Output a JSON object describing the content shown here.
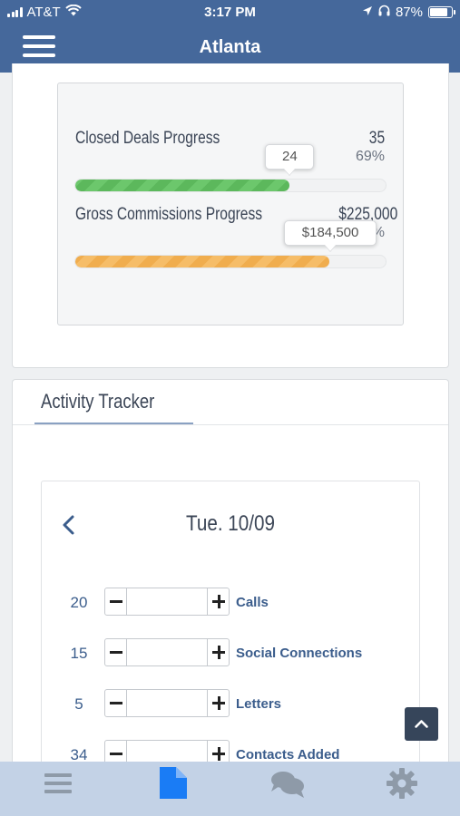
{
  "status_bar": {
    "carrier": "AT&T",
    "time": "3:17 PM",
    "battery": "87%",
    "battery_level": 0.87,
    "icons": [
      "signal-icon",
      "wifi-icon",
      "location-arrow-icon",
      "headphones-icon",
      "battery-icon"
    ]
  },
  "header": {
    "title": "Atlanta",
    "menu_icon": "hamburger-menu-icon"
  },
  "progress": {
    "closed_deals": {
      "label": "Closed Deals Progress",
      "goal": "35",
      "percent": "69%",
      "current": "24",
      "fraction": 0.69,
      "color": "#5cb85c"
    },
    "gross_commissions": {
      "label": "Gross Commissions Progress",
      "goal": "$225,000",
      "percent": "%",
      "current": "$184,500",
      "fraction": 0.82,
      "color": "#f0ad4e"
    }
  },
  "activity": {
    "title": "Activity Tracker",
    "date": "Tue. 10/09",
    "prev_icon": "chevron-left-icon",
    "rows": [
      {
        "count": "20",
        "label": "Calls",
        "value": ""
      },
      {
        "count": "15",
        "label": "Social Connections",
        "value": ""
      },
      {
        "count": "5",
        "label": "Letters",
        "value": ""
      },
      {
        "count": "34",
        "label": "Contacts Added",
        "value": ""
      }
    ]
  },
  "scroll_top_icon": "chevron-up-icon",
  "tab_bar": {
    "tabs": [
      {
        "icon": "list-icon",
        "active": false
      },
      {
        "icon": "document-icon",
        "active": true
      },
      {
        "icon": "chat-icon",
        "active": false
      },
      {
        "icon": "gear-icon",
        "active": false
      }
    ],
    "active_color": "#1a7cf5",
    "inactive_color": "#8e9aa8"
  }
}
